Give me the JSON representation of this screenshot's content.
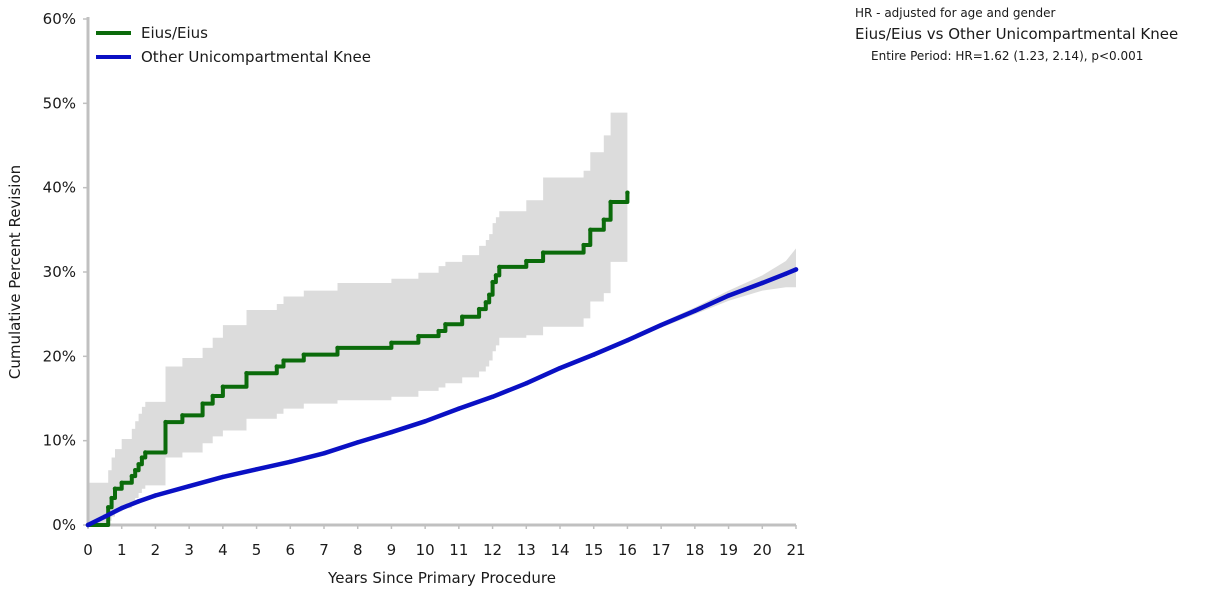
{
  "chart_data": {
    "type": "line",
    "title": "",
    "xlabel": "Years Since Primary Procedure",
    "ylabel": "Cumulative Percent Revision",
    "xlim": [
      0,
      21
    ],
    "ylim": [
      0,
      60
    ],
    "x_ticks": [
      0,
      1,
      2,
      3,
      4,
      5,
      6,
      7,
      8,
      9,
      10,
      11,
      12,
      13,
      14,
      15,
      16,
      17,
      18,
      19,
      20,
      21
    ],
    "y_ticks": [
      {
        "value": 0,
        "label": "0%"
      },
      {
        "value": 10,
        "label": "10%"
      },
      {
        "value": 20,
        "label": "20%"
      },
      {
        "value": 30,
        "label": "30%"
      },
      {
        "value": 40,
        "label": "40%"
      },
      {
        "value": 50,
        "label": "50%"
      },
      {
        "value": 60,
        "label": "60%"
      }
    ],
    "grid": false,
    "legend_position": "top-left",
    "series": [
      {
        "name": "Eius/Eius",
        "color": "#0b6b0b",
        "step": true,
        "x": [
          0,
          0.6,
          0.7,
          0.8,
          1.0,
          1.3,
          1.4,
          1.5,
          1.6,
          1.7,
          2.3,
          2.8,
          3.4,
          3.7,
          4.0,
          4.7,
          5.6,
          5.8,
          6.4,
          7.4,
          9.0,
          9.8,
          10.4,
          10.6,
          11.1,
          11.6,
          11.8,
          11.9,
          12.0,
          12.1,
          12.2,
          13.0,
          13.5,
          14.7,
          14.9,
          15.3,
          15.5,
          16.0
        ],
        "y": [
          0,
          2.1,
          3.2,
          4.3,
          5.0,
          5.8,
          6.5,
          7.2,
          8.0,
          8.6,
          12.2,
          13.0,
          14.4,
          15.3,
          16.4,
          18.0,
          18.8,
          19.5,
          20.2,
          21.0,
          21.6,
          22.4,
          23.0,
          23.8,
          24.7,
          25.6,
          26.4,
          27.3,
          28.8,
          29.6,
          30.6,
          31.3,
          32.3,
          33.2,
          35.0,
          36.2,
          38.3,
          39.4
        ],
        "ci_upper": [
          5.0,
          6.5,
          8.0,
          9.0,
          10.2,
          11.4,
          12.3,
          13.2,
          14.0,
          14.6,
          18.8,
          19.8,
          21.0,
          22.2,
          23.7,
          25.5,
          26.2,
          27.1,
          27.8,
          28.7,
          29.2,
          29.9,
          30.7,
          31.2,
          32.0,
          33.1,
          33.8,
          34.5,
          35.8,
          36.5,
          37.2,
          38.5,
          41.2,
          42.0,
          44.2,
          46.2,
          48.9,
          48.9
        ],
        "ci_lower": [
          0,
          0.5,
          1.0,
          1.6,
          2.0,
          2.7,
          3.2,
          3.8,
          4.3,
          4.7,
          8.0,
          8.6,
          9.7,
          10.5,
          11.2,
          12.6,
          13.2,
          13.8,
          14.4,
          14.8,
          15.2,
          15.9,
          16.3,
          16.8,
          17.5,
          18.2,
          18.8,
          19.5,
          20.6,
          21.3,
          22.2,
          22.5,
          23.5,
          24.5,
          26.5,
          27.5,
          31.2,
          31.2
        ]
      },
      {
        "name": "Other Unicompartmental Knee",
        "color": "#0a10c4",
        "step": false,
        "x": [
          0,
          0.5,
          1,
          1.5,
          2,
          3,
          4,
          5,
          6,
          7,
          8,
          9,
          10,
          11,
          12,
          13,
          14,
          15,
          16,
          17,
          18,
          19,
          20,
          20.7,
          21
        ],
        "y": [
          0,
          1.0,
          2.0,
          2.8,
          3.5,
          4.6,
          5.7,
          6.6,
          7.5,
          8.5,
          9.8,
          11.0,
          12.3,
          13.8,
          15.2,
          16.8,
          18.6,
          20.2,
          21.9,
          23.7,
          25.4,
          27.2,
          28.7,
          29.8,
          30.3
        ],
        "ci_upper": [
          0.1,
          1.2,
          2.2,
          3.0,
          3.7,
          4.8,
          5.9,
          6.8,
          7.7,
          8.7,
          10.0,
          11.2,
          12.5,
          14.0,
          15.4,
          17.0,
          18.8,
          20.4,
          22.2,
          24.0,
          25.8,
          27.8,
          29.6,
          31.3,
          32.8
        ],
        "ci_lower": [
          0,
          0.8,
          1.8,
          2.6,
          3.3,
          4.4,
          5.5,
          6.4,
          7.3,
          8.3,
          9.6,
          10.8,
          12.1,
          13.6,
          15.0,
          16.6,
          18.4,
          20.0,
          21.6,
          23.4,
          25.0,
          26.6,
          27.8,
          28.2,
          28.2
        ]
      }
    ]
  },
  "hr_note": "HR - adjusted for age and gender",
  "hr_comparison_title": "Eius/Eius vs Other Unicompartmental Knee",
  "hr_result": "Entire Period: HR=1.62 (1.23, 2.14), p<0.001",
  "colors": {
    "ci_band": "#dcdcdc",
    "axis": "#c0c0c0"
  }
}
